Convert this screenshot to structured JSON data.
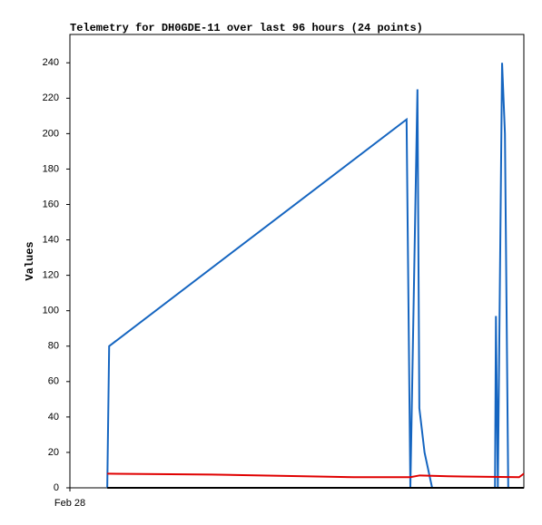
{
  "chart_data": {
    "type": "line",
    "title": "Telemetry for DH0GDE-11 over last 96 hours (24 points)",
    "y_label": "Values",
    "xlim": [
      0,
      96
    ],
    "xticks": [
      {
        "value": 0,
        "label": "Feb 28"
      }
    ],
    "ylim": [
      0,
      256
    ],
    "yticks": [
      0,
      20,
      40,
      60,
      80,
      100,
      120,
      140,
      160,
      180,
      200,
      220,
      240
    ],
    "series": [
      {
        "color": "#1565c0",
        "x": [
          7.9,
          8.3,
          71.2,
          72.0,
          73.5,
          73.9,
          75.0,
          76.6,
          89.9,
          90.1,
          90.5,
          91.4,
          92.0,
          92.7
        ],
        "values": [
          0,
          80,
          208,
          0,
          225,
          45,
          20,
          0,
          0,
          97,
          0,
          240,
          200,
          0
        ]
      },
      {
        "color": "#e00000",
        "x": [
          7.9,
          30,
          60,
          72,
          74,
          80,
          95,
          96
        ],
        "values": [
          8,
          7.5,
          6,
          6,
          7,
          6.5,
          6,
          8
        ]
      },
      {
        "color": "#000000",
        "x": [
          7.9,
          96
        ],
        "values": [
          0,
          0
        ]
      }
    ]
  }
}
